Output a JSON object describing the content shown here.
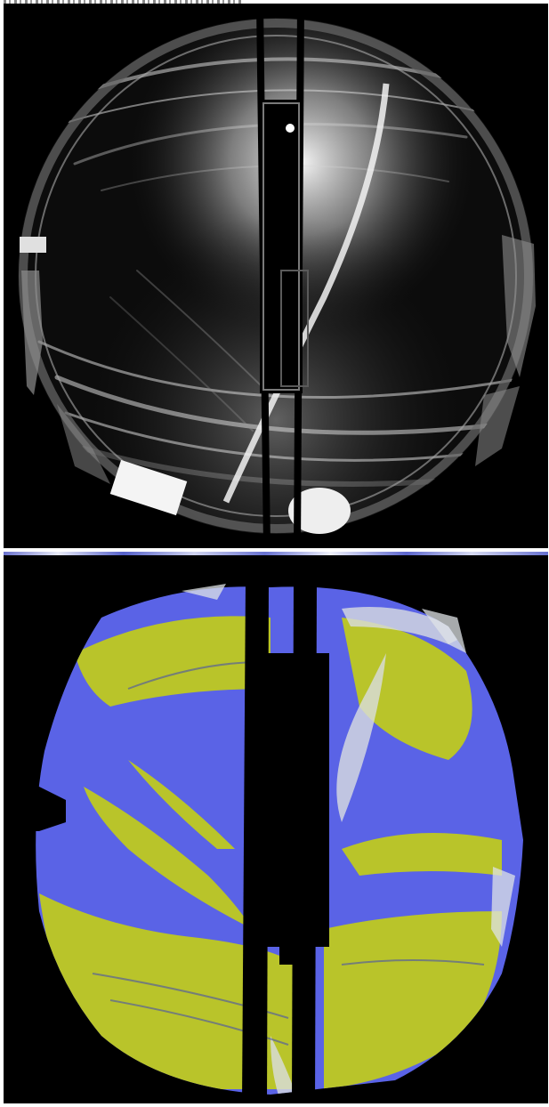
{
  "figure": {
    "panels": [
      {
        "id": "raw-fisheye",
        "kind": "grayscale all-sky fisheye photograph"
      },
      {
        "id": "classified-mask",
        "kind": "color-classified segmentation"
      }
    ],
    "colors": {
      "background": "#000000",
      "sky_blue": "#5a63e6",
      "cloud_yellow": "#b9c42a",
      "cloud_pale": "#d9dde0",
      "gray_light": "#e8e8e8",
      "gray_mid": "#8a8a8a"
    }
  }
}
